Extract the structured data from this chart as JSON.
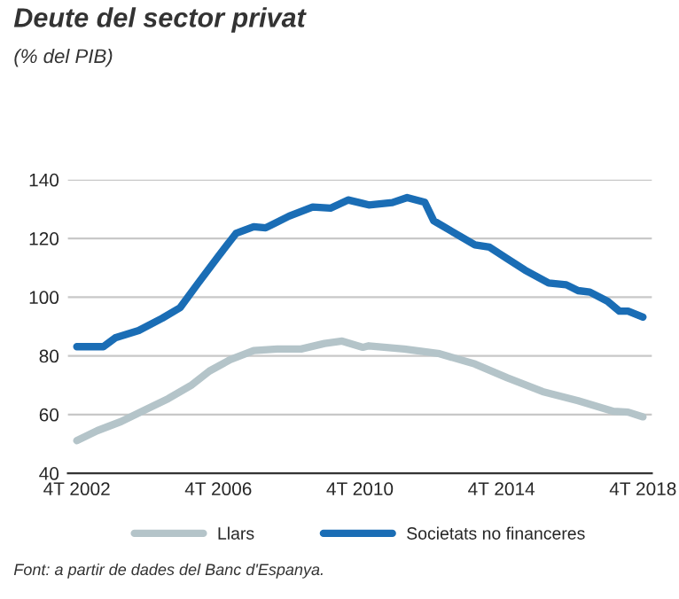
{
  "chart_data": {
    "type": "line",
    "title": "Deute del sector privat",
    "subtitle": "(% del PIB)",
    "annotations": [
      "Font: a partir de dades del Banc d'Espanya."
    ],
    "ylim": [
      40,
      140
    ],
    "yticks": [
      40,
      60,
      80,
      100,
      120,
      140
    ],
    "xlim": [
      "2002-07",
      "2019-01"
    ],
    "xticks": [
      {
        "value": "2002-10",
        "label": "4T 2002"
      },
      {
        "value": "2006-10",
        "label": "4T 2006"
      },
      {
        "value": "2010-10",
        "label": "4T 2010"
      },
      {
        "value": "2014-10",
        "label": "4T 2014"
      },
      {
        "value": "2018-10",
        "label": "4T 2018"
      }
    ],
    "grid": "y",
    "legend": "bottom",
    "series": [
      {
        "name": "Llars",
        "color": "#b4c4c9",
        "x": [
          "2002-10",
          "2003-05",
          "2004-01",
          "2004-09",
          "2005-05",
          "2006-01",
          "2006-07",
          "2007-02",
          "2007-10",
          "2008-06",
          "2009-02",
          "2009-10",
          "2010-04",
          "2010-11",
          "2011-01",
          "2012-01",
          "2013-01",
          "2014-01",
          "2014-12",
          "2015-12",
          "2016-12",
          "2017-12",
          "2018-05",
          "2018-10"
        ],
        "values": [
          51.1,
          54.5,
          57.6,
          61.5,
          65.4,
          70.1,
          74.8,
          78.7,
          81.8,
          82.3,
          82.3,
          84.2,
          85.0,
          82.9,
          83.4,
          82.3,
          80.7,
          77.2,
          72.5,
          67.8,
          64.7,
          61.1,
          60.8,
          59.2
        ]
      },
      {
        "name": "Societats no financeres",
        "color": "#1a6db5",
        "x": [
          "2002-10",
          "2003-07",
          "2003-11",
          "2004-07",
          "2005-03",
          "2005-09",
          "2006-03",
          "2006-10",
          "2007-04",
          "2007-10",
          "2008-02",
          "2008-10",
          "2009-06",
          "2009-12",
          "2010-06",
          "2010-11",
          "2011-01",
          "2011-09",
          "2012-02",
          "2012-08",
          "2012-11",
          "2013-05",
          "2014-01",
          "2014-06",
          "2014-12",
          "2015-06",
          "2016-02",
          "2016-08",
          "2016-12",
          "2017-04",
          "2017-10",
          "2018-02",
          "2018-05",
          "2018-10"
        ],
        "values": [
          83.1,
          83.1,
          86.1,
          88.6,
          92.8,
          96.4,
          104.5,
          113.9,
          121.7,
          124.0,
          123.6,
          127.6,
          130.7,
          130.3,
          133.1,
          131.9,
          131.4,
          132.2,
          133.9,
          132.3,
          126.0,
          122.5,
          117.8,
          117.0,
          113.1,
          109.2,
          104.8,
          104.2,
          102.2,
          101.7,
          98.6,
          95.2,
          95.2,
          93.2
        ]
      }
    ]
  }
}
